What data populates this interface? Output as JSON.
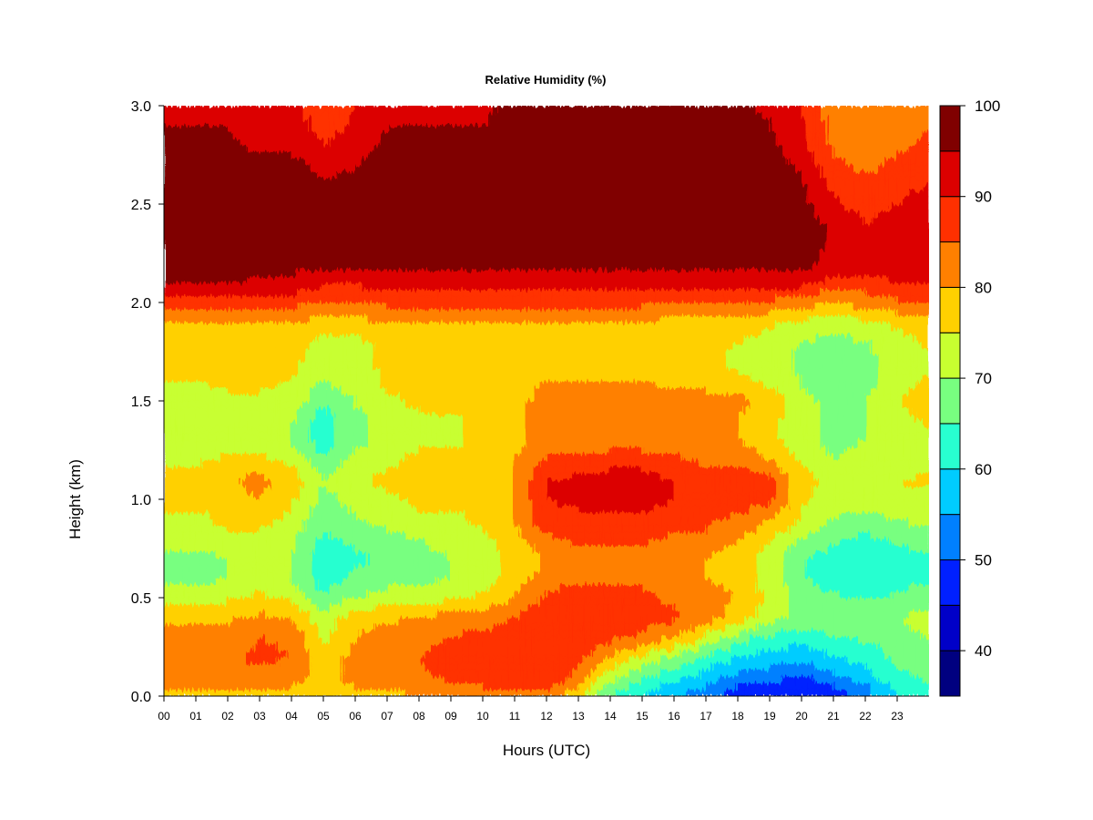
{
  "chart_data": {
    "type": "heatmap",
    "title": "Relative Humidity (%)",
    "xlabel": "Hours (UTC)",
    "ylabel": "Height (km)",
    "x_ticks": [
      "00",
      "01",
      "02",
      "03",
      "04",
      "05",
      "06",
      "07",
      "08",
      "09",
      "10",
      "11",
      "12",
      "13",
      "14",
      "15",
      "16",
      "17",
      "18",
      "19",
      "20",
      "21",
      "22",
      "23"
    ],
    "y_ticks": [
      "0.0",
      "0.5",
      "1.0",
      "1.5",
      "2.0",
      "2.5",
      "3.0"
    ],
    "xlim": [
      0,
      24
    ],
    "ylim": [
      0,
      3.0
    ],
    "colorbar": {
      "ticks": [
        "40",
        "50",
        "60",
        "70",
        "80",
        "90",
        "100"
      ],
      "range": [
        35,
        100
      ],
      "levels": [
        {
          "from": 35,
          "to": 40,
          "color": "#000080"
        },
        {
          "from": 40,
          "to": 45,
          "color": "#0000c8"
        },
        {
          "from": 45,
          "to": 50,
          "color": "#0020ff"
        },
        {
          "from": 50,
          "to": 55,
          "color": "#0080ff"
        },
        {
          "from": 55,
          "to": 60,
          "color": "#00ccff"
        },
        {
          "from": 60,
          "to": 65,
          "color": "#28ffd0"
        },
        {
          "from": 65,
          "to": 70,
          "color": "#78ff80"
        },
        {
          "from": 70,
          "to": 75,
          "color": "#c8ff30"
        },
        {
          "from": 75,
          "to": 80,
          "color": "#ffd000"
        },
        {
          "from": 80,
          "to": 85,
          "color": "#ff8000"
        },
        {
          "from": 85,
          "to": 90,
          "color": "#ff3000"
        },
        {
          "from": 90,
          "to": 95,
          "color": "#dc0000"
        },
        {
          "from": 95,
          "to": 100,
          "color": "#800000"
        }
      ]
    },
    "field": {
      "x_hours": [
        0,
        1,
        2,
        3,
        4,
        5,
        6,
        7,
        8,
        9,
        10,
        11,
        12,
        13,
        14,
        15,
        16,
        17,
        18,
        19,
        20,
        21,
        22,
        23,
        24
      ],
      "z_km": [
        0.0,
        0.05,
        0.1,
        0.2,
        0.3,
        0.4,
        0.5,
        0.6,
        0.7,
        0.8,
        0.9,
        1.0,
        1.1,
        1.2,
        1.3,
        1.4,
        1.5,
        1.6,
        1.7,
        1.8,
        1.9,
        2.0,
        2.1,
        2.2,
        2.4,
        2.6,
        2.8,
        3.0
      ],
      "rh_percent": [
        [
          78,
          77,
          77,
          77,
          78,
          76,
          78,
          78,
          80,
          82,
          83,
          84,
          84,
          75,
          65,
          60,
          55,
          52,
          48,
          46,
          45,
          48,
          52,
          60,
          62
        ],
        [
          80,
          80,
          80,
          80,
          80,
          77,
          80,
          80,
          82,
          84,
          85,
          86,
          87,
          80,
          68,
          62,
          58,
          55,
          50,
          48,
          46,
          50,
          54,
          62,
          64
        ],
        [
          82,
          82,
          83,
          84,
          83,
          78,
          82,
          83,
          84,
          86,
          87,
          88,
          89,
          84,
          72,
          66,
          62,
          58,
          54,
          52,
          50,
          54,
          58,
          64,
          66
        ],
        [
          83,
          83,
          84,
          86,
          85,
          76,
          82,
          84,
          85,
          87,
          88,
          89,
          90,
          87,
          80,
          74,
          70,
          64,
          60,
          58,
          56,
          60,
          62,
          66,
          68
        ],
        [
          82,
          82,
          83,
          85,
          84,
          74,
          80,
          82,
          83,
          85,
          86,
          87,
          90,
          88,
          86,
          84,
          80,
          74,
          68,
          64,
          62,
          65,
          66,
          68,
          70
        ],
        [
          78,
          78,
          79,
          81,
          80,
          72,
          78,
          79,
          80,
          82,
          83,
          85,
          89,
          89,
          88,
          87,
          86,
          82,
          78,
          72,
          68,
          68,
          70,
          70,
          72
        ],
        [
          72,
          72,
          74,
          76,
          74,
          66,
          70,
          72,
          73,
          74,
          76,
          80,
          86,
          88,
          88,
          86,
          84,
          82,
          80,
          74,
          68,
          66,
          64,
          66,
          68
        ],
        [
          68,
          68,
          70,
          72,
          70,
          62,
          66,
          68,
          68,
          70,
          72,
          78,
          82,
          84,
          84,
          84,
          82,
          80,
          78,
          72,
          66,
          62,
          60,
          62,
          64
        ],
        [
          68,
          68,
          70,
          72,
          70,
          62,
          64,
          66,
          68,
          70,
          72,
          77,
          80,
          82,
          82,
          82,
          80,
          80,
          78,
          72,
          66,
          62,
          60,
          62,
          64
        ],
        [
          72,
          72,
          74,
          74,
          72,
          64,
          66,
          68,
          70,
          72,
          74,
          78,
          84,
          86,
          86,
          86,
          84,
          84,
          80,
          76,
          70,
          66,
          64,
          66,
          68
        ],
        [
          74,
          74,
          76,
          76,
          74,
          66,
          70,
          72,
          74,
          74,
          76,
          80,
          88,
          89,
          89,
          89,
          88,
          86,
          84,
          80,
          74,
          70,
          68,
          70,
          72
        ],
        [
          76,
          76,
          78,
          80,
          76,
          68,
          72,
          74,
          76,
          76,
          78,
          80,
          90,
          91,
          92,
          92,
          90,
          88,
          88,
          86,
          76,
          72,
          72,
          74,
          74
        ],
        [
          78,
          78,
          79,
          82,
          78,
          70,
          74,
          76,
          78,
          78,
          79,
          80,
          90,
          91,
          92,
          92,
          90,
          88,
          88,
          86,
          77,
          74,
          74,
          75,
          76
        ],
        [
          74,
          74,
          76,
          76,
          74,
          66,
          72,
          74,
          76,
          76,
          78,
          80,
          86,
          86,
          88,
          88,
          86,
          84,
          84,
          80,
          74,
          70,
          72,
          72,
          72
        ],
        [
          70,
          70,
          72,
          72,
          70,
          62,
          68,
          72,
          74,
          74,
          76,
          78,
          82,
          82,
          82,
          82,
          82,
          80,
          80,
          76,
          72,
          68,
          70,
          72,
          74
        ],
        [
          70,
          70,
          72,
          72,
          71,
          62,
          68,
          72,
          74,
          74,
          76,
          78,
          82,
          82,
          82,
          82,
          82,
          80,
          80,
          76,
          72,
          68,
          70,
          72,
          76
        ],
        [
          73,
          73,
          74,
          74,
          73,
          66,
          70,
          74,
          76,
          76,
          78,
          78,
          82,
          84,
          84,
          84,
          84,
          82,
          82,
          78,
          72,
          68,
          70,
          74,
          80
        ],
        [
          75,
          75,
          76,
          76,
          75,
          70,
          72,
          76,
          76,
          76,
          78,
          78,
          80,
          80,
          80,
          80,
          78,
          78,
          76,
          74,
          70,
          66,
          68,
          72,
          76
        ],
        [
          76,
          76,
          77,
          77,
          76,
          72,
          73,
          76,
          76,
          76,
          77,
          77,
          78,
          78,
          78,
          78,
          76,
          76,
          74,
          72,
          69,
          66,
          68,
          72,
          74
        ],
        [
          77,
          77,
          78,
          78,
          77,
          74,
          74,
          76,
          77,
          77,
          78,
          78,
          78,
          78,
          78,
          78,
          76,
          76,
          75,
          73,
          70,
          68,
          70,
          73,
          76
        ],
        [
          80,
          80,
          80,
          80,
          80,
          78,
          78,
          80,
          80,
          80,
          80,
          80,
          80,
          80,
          80,
          80,
          78,
          78,
          78,
          76,
          74,
          72,
          74,
          76,
          78
        ],
        [
          87,
          87,
          87,
          87,
          87,
          84,
          84,
          86,
          86,
          86,
          86,
          86,
          86,
          86,
          86,
          86,
          86,
          86,
          86,
          84,
          82,
          80,
          82,
          84,
          85
        ],
        [
          95,
          95,
          95,
          94,
          94,
          91,
          91,
          92,
          92,
          92,
          92,
          92,
          92,
          92,
          92,
          92,
          92,
          92,
          92,
          92,
          92,
          88,
          88,
          90,
          91
        ],
        [
          98,
          98,
          98,
          97,
          97,
          96,
          96,
          97,
          97,
          97,
          97,
          97,
          97,
          97,
          97,
          97,
          97,
          97,
          97,
          97,
          97,
          94,
          92,
          93,
          94
        ],
        [
          100,
          100,
          100,
          99,
          99,
          98,
          98,
          99,
          99,
          99,
          99,
          99,
          99,
          99,
          99,
          99,
          99,
          99,
          99,
          99,
          98,
          94,
          90,
          92,
          94
        ],
        [
          100,
          100,
          100,
          99,
          99,
          96,
          97,
          99,
          99,
          99,
          99,
          99,
          99,
          99,
          99,
          99,
          99,
          99,
          99,
          98,
          96,
          88,
          86,
          88,
          90
        ],
        [
          96,
          96,
          96,
          94,
          94,
          90,
          92,
          96,
          96,
          96,
          96,
          97,
          98,
          98,
          98,
          98,
          98,
          98,
          98,
          96,
          92,
          84,
          82,
          84,
          86
        ],
        [
          94,
          94,
          94,
          92,
          92,
          86,
          90,
          94,
          94,
          94,
          94,
          96,
          96,
          96,
          96,
          96,
          96,
          96,
          96,
          94,
          90,
          82,
          80,
          82,
          84
        ]
      ]
    }
  }
}
